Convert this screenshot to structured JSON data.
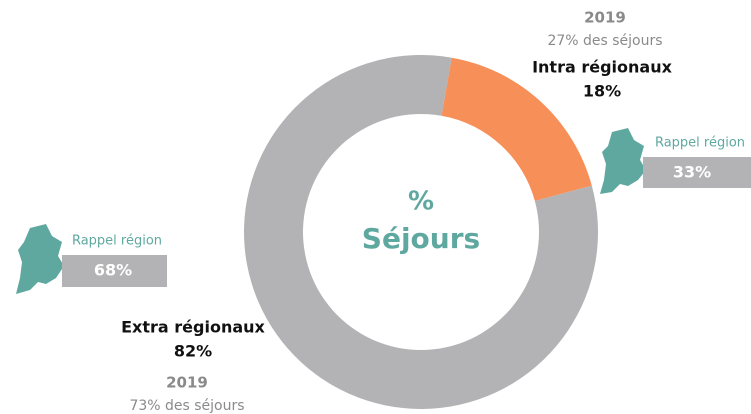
{
  "chart_data": {
    "type": "donut",
    "center_title": "%",
    "center_subtitle": "Séjours",
    "categories": [
      "Intra régionaux",
      "Extra régionaux"
    ],
    "values": [
      18,
      82
    ],
    "value_labels": [
      "18%",
      "82%"
    ],
    "colors": [
      "#f78f58",
      "#b3b3b5"
    ],
    "comparisons": [
      {
        "year": "2019",
        "text": "27% des séjours"
      },
      {
        "year": "2019",
        "text": "73% des séjours"
      }
    ],
    "region_reminders": [
      {
        "label": "Rappel région",
        "value": "33%"
      },
      {
        "label": "Rappel région",
        "value": "68%"
      }
    ]
  }
}
